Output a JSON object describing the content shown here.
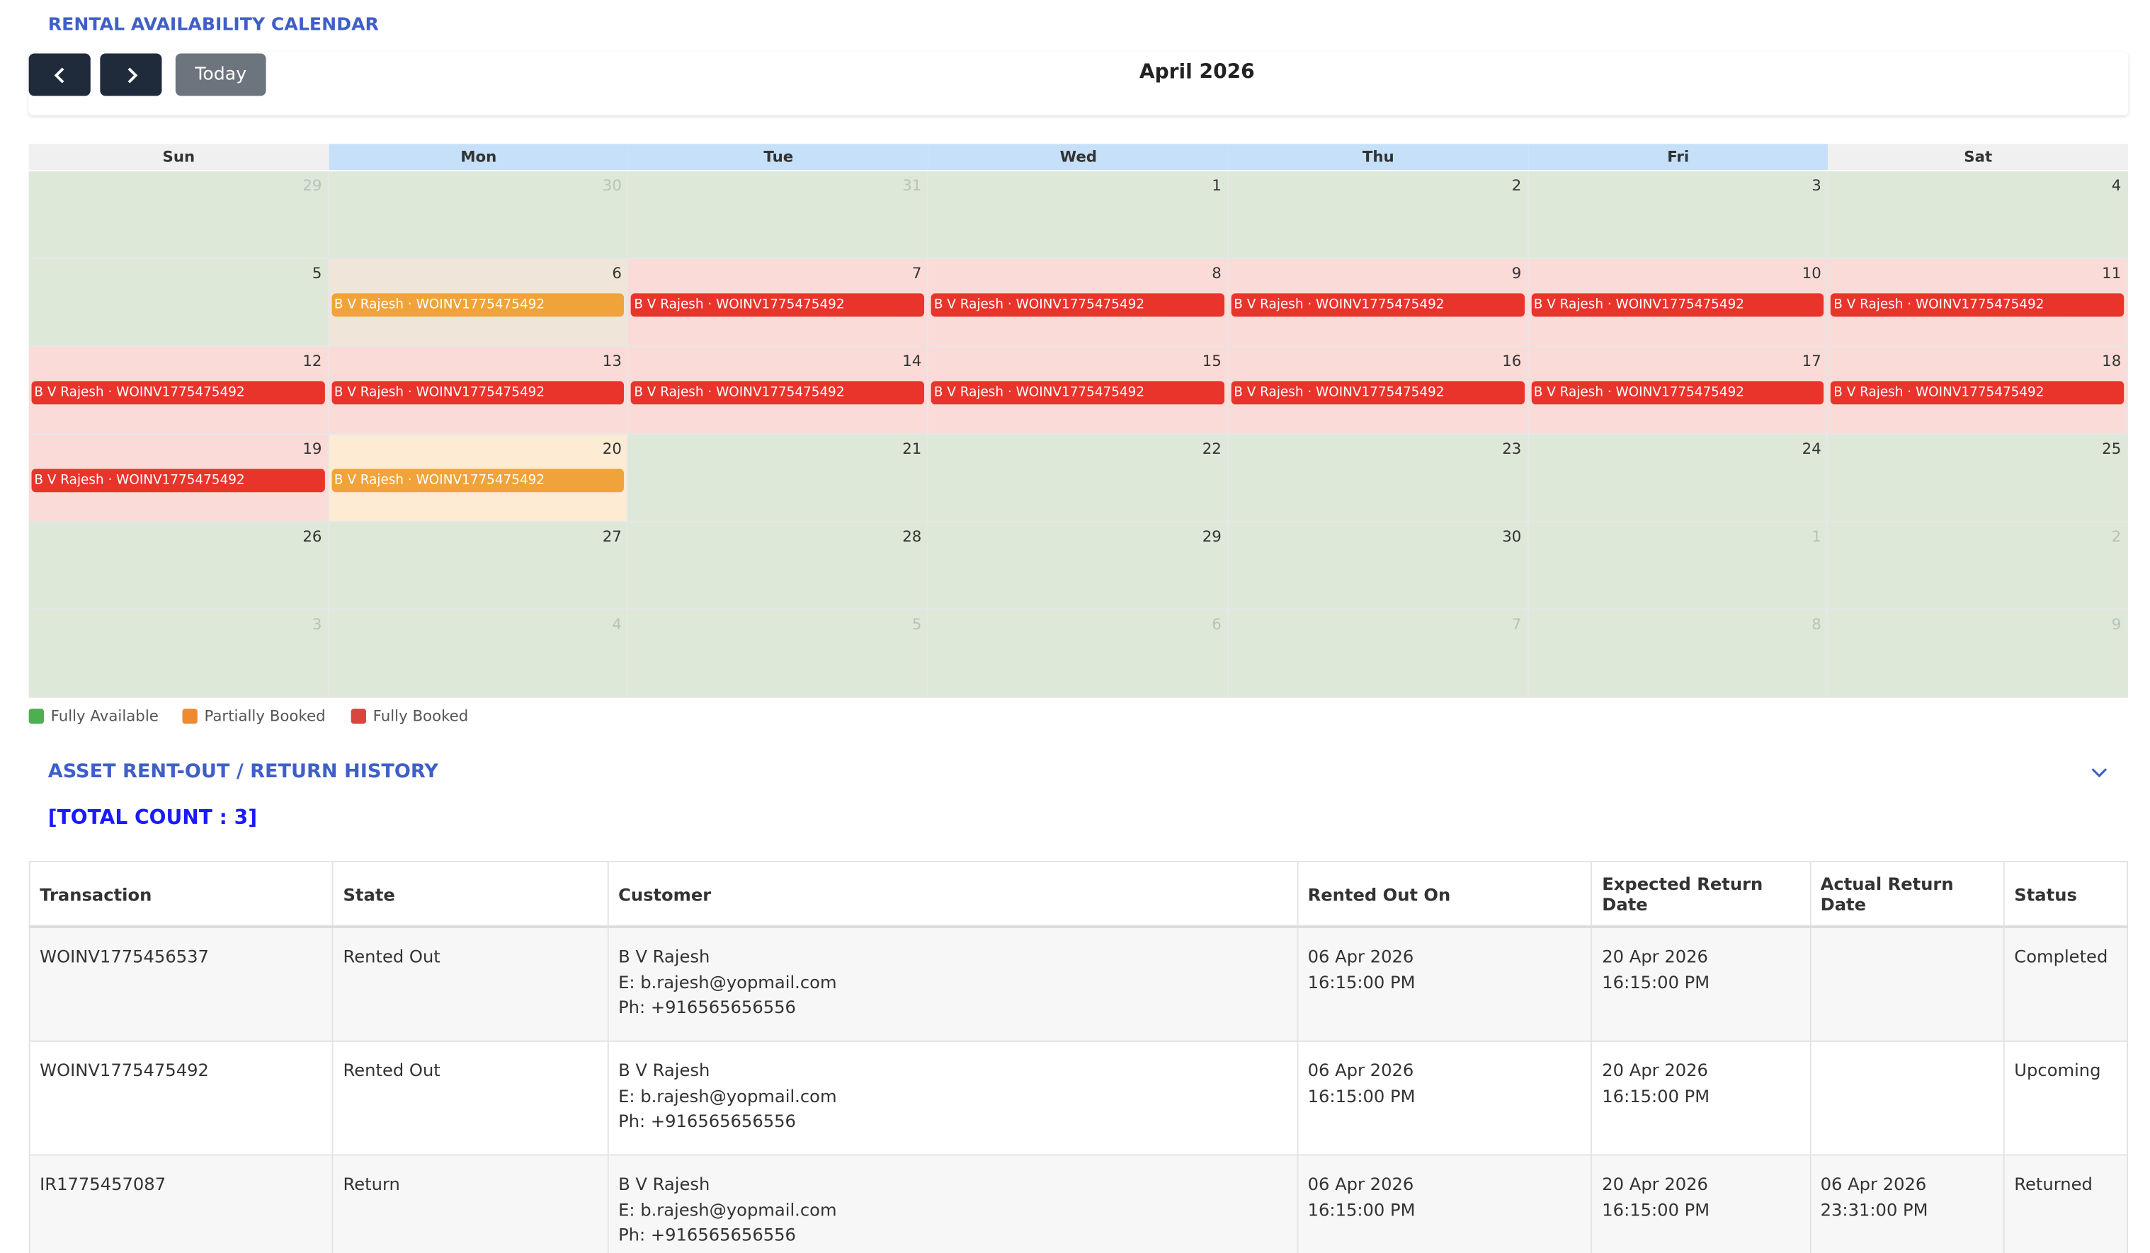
{
  "header": {
    "title": "RENTAL AVAILABILITY CALENDAR",
    "month": "April 2026",
    "today_button": "Today"
  },
  "calendar": {
    "weekdays": [
      {
        "label": "Sun",
        "highlight": false
      },
      {
        "label": "Mon",
        "highlight": true
      },
      {
        "label": "Tue",
        "highlight": true
      },
      {
        "label": "Wed",
        "highlight": true
      },
      {
        "label": "Thu",
        "highlight": true
      },
      {
        "label": "Fri",
        "highlight": true
      },
      {
        "label": "Sat",
        "highlight": false
      }
    ],
    "weeks": [
      [
        {
          "day": "29",
          "status": "other"
        },
        {
          "day": "30",
          "status": "other"
        },
        {
          "day": "31",
          "status": "other"
        },
        {
          "day": "1",
          "status": "available"
        },
        {
          "day": "2",
          "status": "available"
        },
        {
          "day": "3",
          "status": "available"
        },
        {
          "day": "4",
          "status": "available"
        }
      ],
      [
        {
          "day": "5",
          "status": "available"
        },
        {
          "day": "6",
          "status": "partial",
          "event": "B V Rajesh · WOINV1775475492"
        },
        {
          "day": "7",
          "status": "booked",
          "event": "B V Rajesh · WOINV1775475492"
        },
        {
          "day": "8",
          "status": "booked",
          "event": "B V Rajesh · WOINV1775475492"
        },
        {
          "day": "9",
          "status": "booked",
          "event": "B V Rajesh · WOINV1775475492"
        },
        {
          "day": "10",
          "status": "booked",
          "event": "B V Rajesh · WOINV1775475492"
        },
        {
          "day": "11",
          "status": "booked",
          "event": "B V Rajesh · WOINV1775475492"
        }
      ],
      [
        {
          "day": "12",
          "status": "booked",
          "event": "B V Rajesh · WOINV1775475492"
        },
        {
          "day": "13",
          "status": "booked",
          "event": "B V Rajesh · WOINV1775475492"
        },
        {
          "day": "14",
          "status": "booked",
          "event": "B V Rajesh · WOINV1775475492"
        },
        {
          "day": "15",
          "status": "booked",
          "event": "B V Rajesh · WOINV1775475492"
        },
        {
          "day": "16",
          "status": "booked",
          "event": "B V Rajesh · WOINV1775475492"
        },
        {
          "day": "17",
          "status": "booked",
          "event": "B V Rajesh · WOINV1775475492"
        },
        {
          "day": "18",
          "status": "booked",
          "event": "B V Rajesh · WOINV1775475492"
        }
      ],
      [
        {
          "day": "19",
          "status": "booked",
          "event": "B V Rajesh · WOINV1775475492"
        },
        {
          "day": "20",
          "status": "partial-light",
          "event": "B V Rajesh · WOINV1775475492"
        },
        {
          "day": "21",
          "status": "available"
        },
        {
          "day": "22",
          "status": "available"
        },
        {
          "day": "23",
          "status": "available"
        },
        {
          "day": "24",
          "status": "available"
        },
        {
          "day": "25",
          "status": "available"
        }
      ],
      [
        {
          "day": "26",
          "status": "available"
        },
        {
          "day": "27",
          "status": "available"
        },
        {
          "day": "28",
          "status": "available"
        },
        {
          "day": "29",
          "status": "available"
        },
        {
          "day": "30",
          "status": "available"
        },
        {
          "day": "1",
          "status": "other"
        },
        {
          "day": "2",
          "status": "other"
        }
      ],
      [
        {
          "day": "3",
          "status": "other"
        },
        {
          "day": "4",
          "status": "other"
        },
        {
          "day": "5",
          "status": "other"
        },
        {
          "day": "6",
          "status": "other"
        },
        {
          "day": "7",
          "status": "other"
        },
        {
          "day": "8",
          "status": "other"
        },
        {
          "day": "9",
          "status": "other"
        }
      ]
    ],
    "legend": [
      {
        "label": "Fully Available",
        "color": "#4caf50"
      },
      {
        "label": "Partially Booked",
        "color": "#f08a30"
      },
      {
        "label": "Fully Booked",
        "color": "#d9453f"
      }
    ]
  },
  "history": {
    "title": "ASSET RENT-OUT / RETURN HISTORY",
    "total_count": "[TOTAL COUNT : 3]",
    "columns": [
      "Transaction",
      "State",
      "Customer",
      "Rented Out On",
      "Expected Return Date",
      "Actual Return Date",
      "Status"
    ],
    "rows": [
      [
        [
          "WOINV1775456537"
        ],
        [
          "Rented Out"
        ],
        [
          "B V Rajesh",
          "E: b.rajesh@yopmail.com",
          "Ph: +916565656556"
        ],
        [
          "06 Apr 2026",
          "16:15:00 PM"
        ],
        [
          "20 Apr 2026",
          "16:15:00 PM"
        ],
        [],
        [
          "Completed"
        ]
      ],
      [
        [
          "WOINV1775475492"
        ],
        [
          "Rented Out"
        ],
        [
          "B V Rajesh",
          "E: b.rajesh@yopmail.com",
          "Ph: +916565656556"
        ],
        [
          "06 Apr 2026",
          "16:15:00 PM"
        ],
        [
          "20 Apr 2026",
          "16:15:00 PM"
        ],
        [],
        [
          "Upcoming"
        ]
      ],
      [
        [
          "IR1775457087"
        ],
        [
          "Return"
        ],
        [
          "B V Rajesh",
          "E: b.rajesh@yopmail.com",
          "Ph: +916565656556"
        ],
        [
          "06 Apr 2026",
          "16:15:00 PM"
        ],
        [
          "20 Apr 2026",
          "16:15:00 PM"
        ],
        [
          "06 Apr 2026",
          "23:31:00 PM"
        ],
        [
          "Returned"
        ]
      ]
    ]
  }
}
